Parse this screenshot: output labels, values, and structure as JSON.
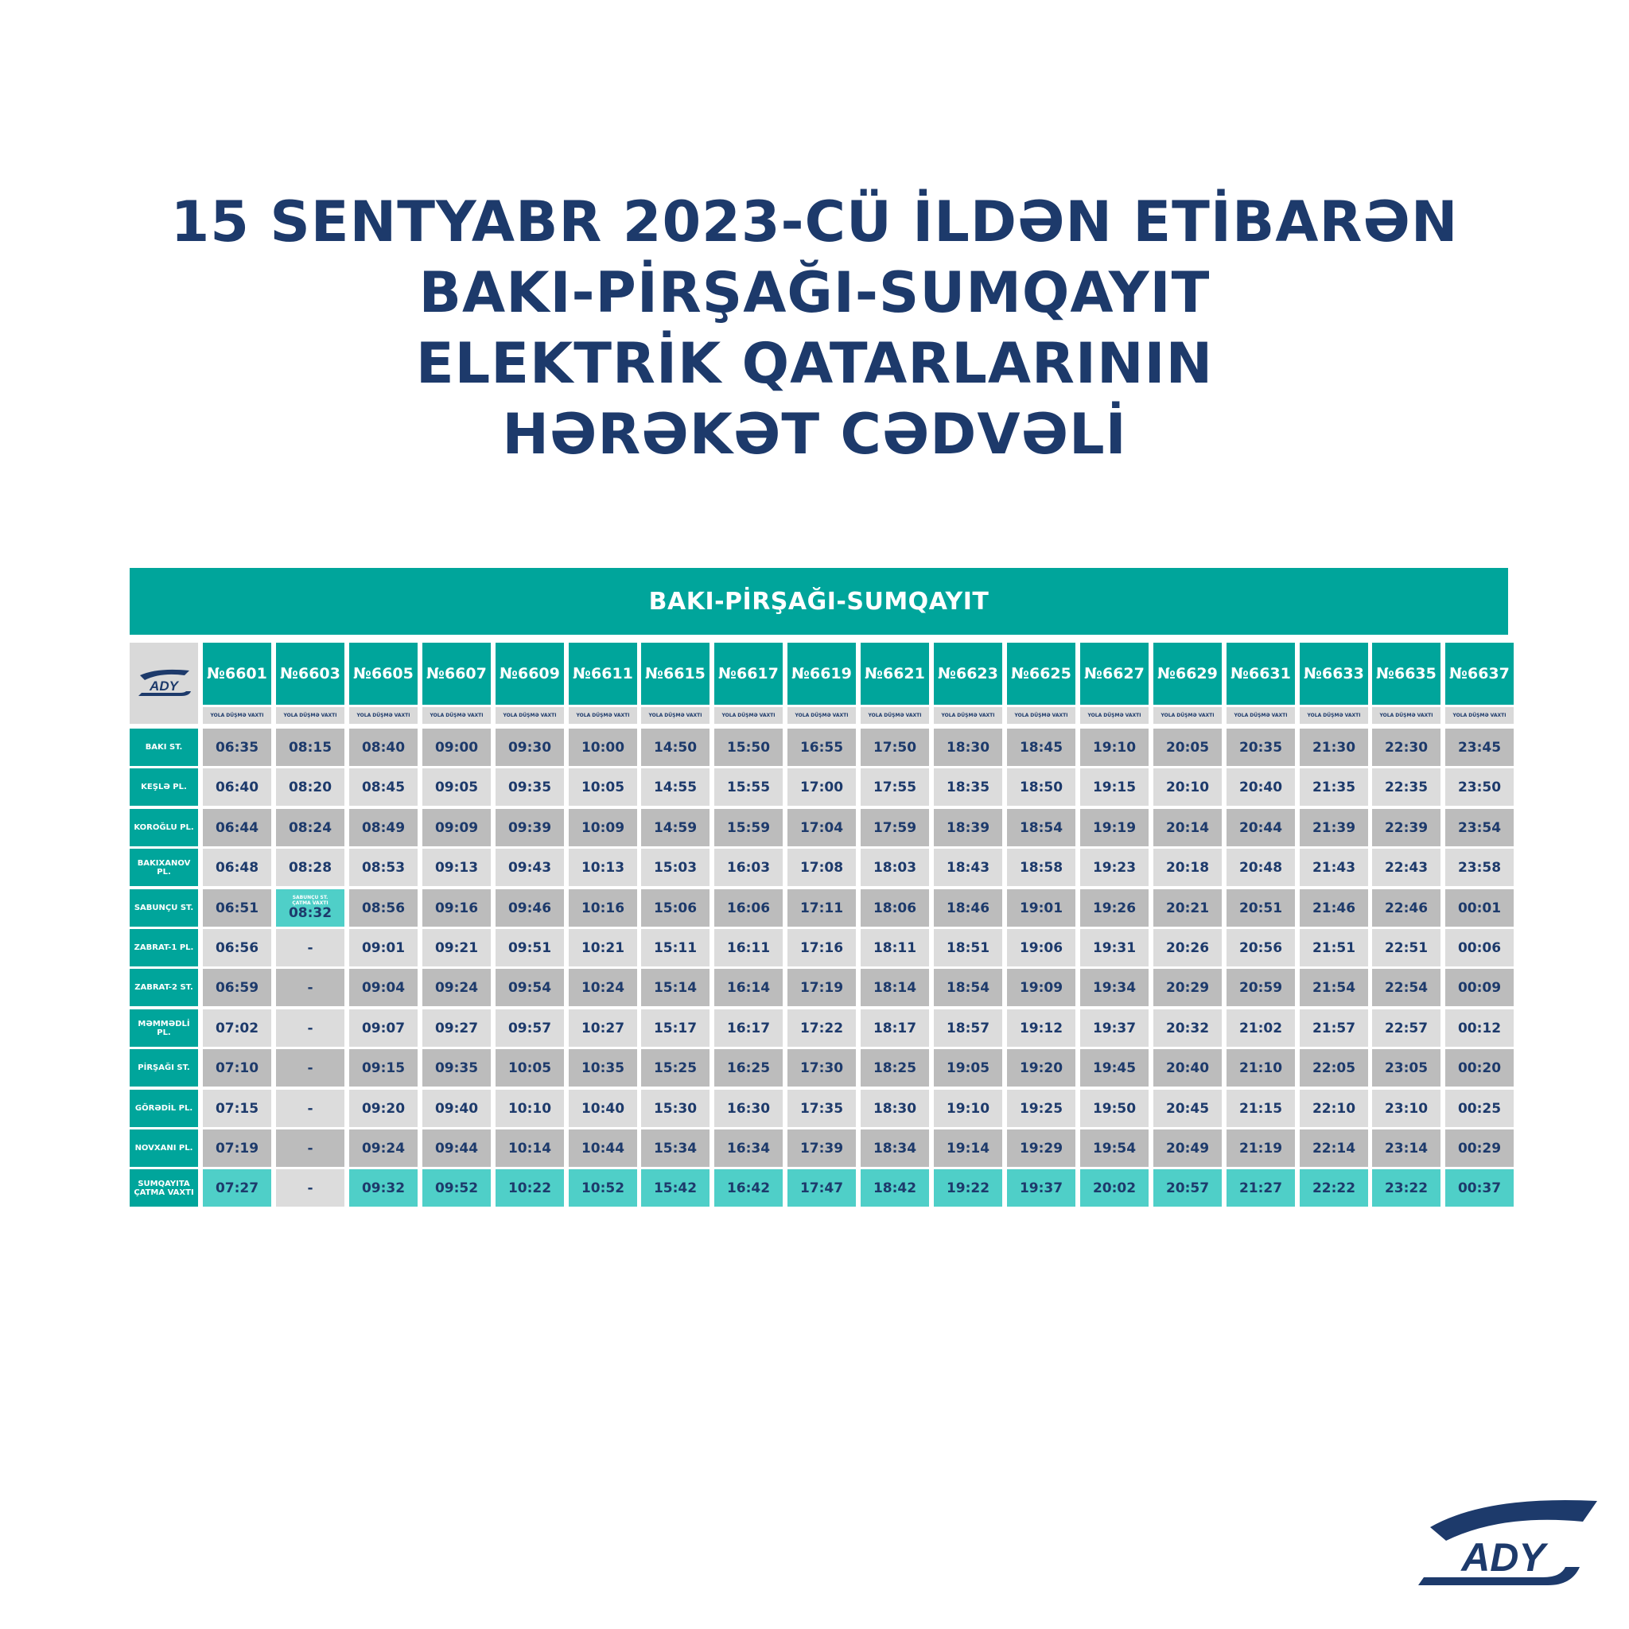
{
  "title_lines": [
    "15 SENTYABR 2023-CÜ İLDƏN ETİBARƏN",
    "BAKI-PİRŞAĞI-SUMQAYIT",
    "ELEKTRİK QATARLARININ",
    "HƏRƏKƏT CƏDVƏLİ"
  ],
  "route_title": "BAKI-PİRŞAĞI-SUMQAYIT",
  "logo_text": "ADY",
  "subheader": "YOLA DÜŞMƏ VAXTI",
  "trains": [
    "№6601",
    "№6603",
    "№6605",
    "№6607",
    "№6609",
    "№6611",
    "№6615",
    "№6617",
    "№6619",
    "№6621",
    "№6623",
    "№6625",
    "№6627",
    "№6629",
    "№6631",
    "№6633",
    "№6635",
    "№6637"
  ],
  "rows": [
    {
      "station": "BAKI ST.",
      "times": [
        "06:35",
        "08:15",
        "08:40",
        "09:00",
        "09:30",
        "10:00",
        "14:50",
        "15:50",
        "16:55",
        "17:50",
        "18:30",
        "18:45",
        "19:10",
        "20:05",
        "20:35",
        "21:30",
        "22:30",
        "23:45"
      ]
    },
    {
      "station": "KEŞLƏ PL.",
      "times": [
        "06:40",
        "08:20",
        "08:45",
        "09:05",
        "09:35",
        "10:05",
        "14:55",
        "15:55",
        "17:00",
        "17:55",
        "18:35",
        "18:50",
        "19:15",
        "20:10",
        "20:40",
        "21:35",
        "22:35",
        "23:50"
      ]
    },
    {
      "station": "KOROĞLU PL.",
      "times": [
        "06:44",
        "08:24",
        "08:49",
        "09:09",
        "09:39",
        "10:09",
        "14:59",
        "15:59",
        "17:04",
        "17:59",
        "18:39",
        "18:54",
        "19:19",
        "20:14",
        "20:44",
        "21:39",
        "22:39",
        "23:54"
      ]
    },
    {
      "station": "BAKIXANOV\nPL.",
      "times": [
        "06:48",
        "08:28",
        "08:53",
        "09:13",
        "09:43",
        "10:13",
        "15:03",
        "16:03",
        "17:08",
        "18:03",
        "18:43",
        "18:58",
        "19:23",
        "20:18",
        "20:48",
        "21:43",
        "22:43",
        "23:58"
      ]
    },
    {
      "station": "SABUNÇU ST.",
      "times": [
        "06:51",
        "08:32",
        "08:56",
        "09:16",
        "09:46",
        "10:16",
        "15:06",
        "16:06",
        "17:11",
        "18:06",
        "18:46",
        "19:01",
        "19:26",
        "20:21",
        "20:51",
        "21:46",
        "22:46",
        "00:01"
      ]
    },
    {
      "station": "ZABRAT-1 PL.",
      "times": [
        "06:56",
        "-",
        "09:01",
        "09:21",
        "09:51",
        "10:21",
        "15:11",
        "16:11",
        "17:16",
        "18:11",
        "18:51",
        "19:06",
        "19:31",
        "20:26",
        "20:56",
        "21:51",
        "22:51",
        "00:06"
      ]
    },
    {
      "station": "ZABRAT-2 ST.",
      "times": [
        "06:59",
        "-",
        "09:04",
        "09:24",
        "09:54",
        "10:24",
        "15:14",
        "16:14",
        "17:19",
        "18:14",
        "18:54",
        "19:09",
        "19:34",
        "20:29",
        "20:59",
        "21:54",
        "22:54",
        "00:09"
      ]
    },
    {
      "station": "MƏMMƏDLİ\nPL.",
      "times": [
        "07:02",
        "-",
        "09:07",
        "09:27",
        "09:57",
        "10:27",
        "15:17",
        "16:17",
        "17:22",
        "18:17",
        "18:57",
        "19:12",
        "19:37",
        "20:32",
        "21:02",
        "21:57",
        "22:57",
        "00:12"
      ]
    },
    {
      "station": "PİRŞAĞI ST.",
      "times": [
        "07:10",
        "-",
        "09:15",
        "09:35",
        "10:05",
        "10:35",
        "15:25",
        "16:25",
        "17:30",
        "18:25",
        "19:05",
        "19:20",
        "19:45",
        "20:40",
        "21:10",
        "22:05",
        "23:05",
        "00:20"
      ]
    },
    {
      "station": "GÖRƏDİL PL.",
      "times": [
        "07:15",
        "-",
        "09:20",
        "09:40",
        "10:10",
        "10:40",
        "15:30",
        "16:30",
        "17:35",
        "18:30",
        "19:10",
        "19:25",
        "19:50",
        "20:45",
        "21:15",
        "22:10",
        "23:10",
        "00:25"
      ]
    },
    {
      "station": "NOVXANI PL.",
      "times": [
        "07:19",
        "-",
        "09:24",
        "09:44",
        "10:14",
        "10:44",
        "15:34",
        "16:34",
        "17:39",
        "18:34",
        "19:14",
        "19:29",
        "19:54",
        "20:49",
        "21:19",
        "22:14",
        "23:14",
        "00:29"
      ]
    },
    {
      "station": "SUMQAYITA\nÇATMA VAXTI",
      "times": [
        "07:27",
        "-",
        "09:32",
        "09:52",
        "10:22",
        "10:52",
        "15:42",
        "16:42",
        "17:47",
        "18:42",
        "19:22",
        "19:37",
        "20:02",
        "20:57",
        "21:27",
        "22:22",
        "23:22",
        "00:37"
      ]
    }
  ],
  "special_cell": {
    "label": "SABUNÇU ST.\nÇATMA VAXTI",
    "time": "08:32"
  },
  "colors": {
    "teal": "#00a59b",
    "navy": "#1d3a6b",
    "arrival": "#4fcfc8"
  }
}
